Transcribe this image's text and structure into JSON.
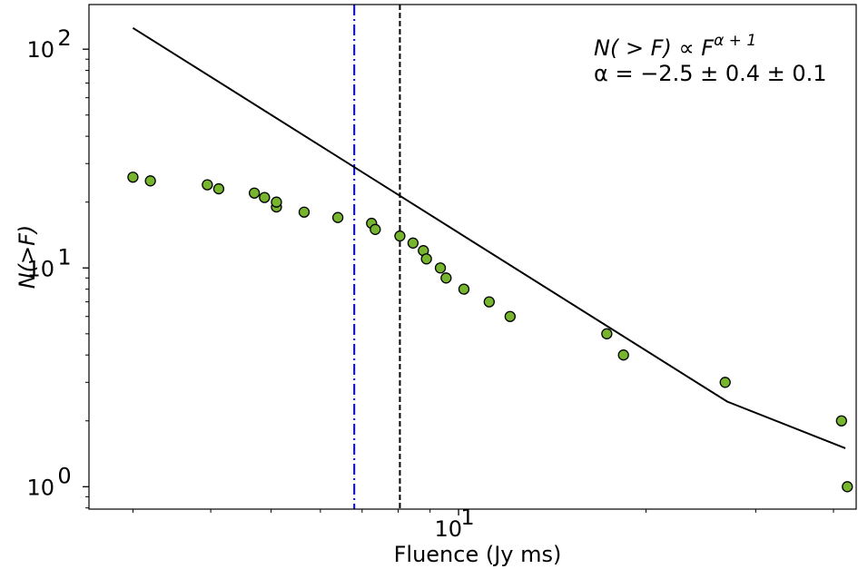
{
  "chart_data": {
    "type": "scatter",
    "xlabel": "Fluence (Jy ms)",
    "ylabel": "N(>F)",
    "xscale": "log",
    "yscale": "log",
    "xlim": [
      2.55,
      43.5
    ],
    "ylim": [
      0.79,
      160
    ],
    "xticks": [
      {
        "value": 10,
        "base": "10",
        "exp": "1"
      }
    ],
    "yticks": [
      {
        "value": 1,
        "base": "10",
        "exp": "0"
      },
      {
        "value": 10,
        "base": "10",
        "exp": "1"
      },
      {
        "value": 100,
        "base": "10",
        "exp": "2"
      }
    ],
    "points": [
      {
        "x": 3.0,
        "y": 26
      },
      {
        "x": 3.2,
        "y": 25
      },
      {
        "x": 3.95,
        "y": 24
      },
      {
        "x": 4.12,
        "y": 23
      },
      {
        "x": 4.7,
        "y": 22
      },
      {
        "x": 4.88,
        "y": 21
      },
      {
        "x": 5.1,
        "y": 19
      },
      {
        "x": 5.1,
        "y": 20
      },
      {
        "x": 5.65,
        "y": 18
      },
      {
        "x": 6.4,
        "y": 17
      },
      {
        "x": 7.25,
        "y": 16
      },
      {
        "x": 7.35,
        "y": 15
      },
      {
        "x": 8.05,
        "y": 14
      },
      {
        "x": 8.45,
        "y": 13
      },
      {
        "x": 8.78,
        "y": 12
      },
      {
        "x": 8.88,
        "y": 11
      },
      {
        "x": 9.35,
        "y": 10
      },
      {
        "x": 9.55,
        "y": 9
      },
      {
        "x": 10.2,
        "y": 8
      },
      {
        "x": 11.2,
        "y": 7
      },
      {
        "x": 12.1,
        "y": 6
      },
      {
        "x": 17.3,
        "y": 5
      },
      {
        "x": 18.4,
        "y": 4
      },
      {
        "x": 26.8,
        "y": 3
      },
      {
        "x": 41.2,
        "y": 2
      },
      {
        "x": 42.1,
        "y": 1
      }
    ],
    "fit_line": {
      "x": [
        3.0,
        27.0,
        41.8
      ],
      "y": [
        125,
        2.45,
        1.5
      ]
    },
    "vlines": [
      {
        "x": 6.8,
        "color": "#0000ff",
        "style": "dashdot"
      },
      {
        "x": 8.05,
        "color": "#000000",
        "style": "dashed"
      }
    ],
    "marker_color": "#77b52e",
    "annotation": {
      "line1": {
        "a": "N( > F) ∝ F",
        "sup": "α + 1"
      },
      "line2": "α = −2.5 ± 0.4 ± 0.1"
    }
  }
}
